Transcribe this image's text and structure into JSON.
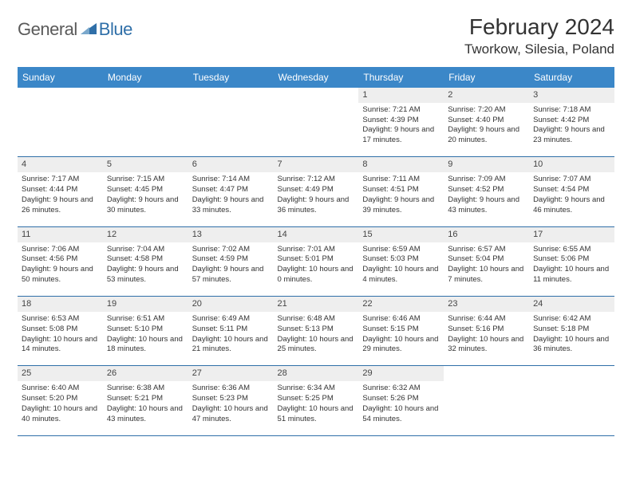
{
  "logo": {
    "general": "General",
    "blue": "Blue",
    "icon_color": "#2f6fa8"
  },
  "title": "February 2024",
  "location": "Tworkow, Silesia, Poland",
  "header_bg": "#3b87c8",
  "header_fg": "#ffffff",
  "daynum_bg": "#eeeeee",
  "border_color": "#2f6fa8",
  "text_color": "#333333",
  "day_names": [
    "Sunday",
    "Monday",
    "Tuesday",
    "Wednesday",
    "Thursday",
    "Friday",
    "Saturday"
  ],
  "weeks": [
    [
      null,
      null,
      null,
      null,
      {
        "n": "1",
        "sr": "Sunrise: 7:21 AM",
        "ss": "Sunset: 4:39 PM",
        "dl": "Daylight: 9 hours and 17 minutes."
      },
      {
        "n": "2",
        "sr": "Sunrise: 7:20 AM",
        "ss": "Sunset: 4:40 PM",
        "dl": "Daylight: 9 hours and 20 minutes."
      },
      {
        "n": "3",
        "sr": "Sunrise: 7:18 AM",
        "ss": "Sunset: 4:42 PM",
        "dl": "Daylight: 9 hours and 23 minutes."
      }
    ],
    [
      {
        "n": "4",
        "sr": "Sunrise: 7:17 AM",
        "ss": "Sunset: 4:44 PM",
        "dl": "Daylight: 9 hours and 26 minutes."
      },
      {
        "n": "5",
        "sr": "Sunrise: 7:15 AM",
        "ss": "Sunset: 4:45 PM",
        "dl": "Daylight: 9 hours and 30 minutes."
      },
      {
        "n": "6",
        "sr": "Sunrise: 7:14 AM",
        "ss": "Sunset: 4:47 PM",
        "dl": "Daylight: 9 hours and 33 minutes."
      },
      {
        "n": "7",
        "sr": "Sunrise: 7:12 AM",
        "ss": "Sunset: 4:49 PM",
        "dl": "Daylight: 9 hours and 36 minutes."
      },
      {
        "n": "8",
        "sr": "Sunrise: 7:11 AM",
        "ss": "Sunset: 4:51 PM",
        "dl": "Daylight: 9 hours and 39 minutes."
      },
      {
        "n": "9",
        "sr": "Sunrise: 7:09 AM",
        "ss": "Sunset: 4:52 PM",
        "dl": "Daylight: 9 hours and 43 minutes."
      },
      {
        "n": "10",
        "sr": "Sunrise: 7:07 AM",
        "ss": "Sunset: 4:54 PM",
        "dl": "Daylight: 9 hours and 46 minutes."
      }
    ],
    [
      {
        "n": "11",
        "sr": "Sunrise: 7:06 AM",
        "ss": "Sunset: 4:56 PM",
        "dl": "Daylight: 9 hours and 50 minutes."
      },
      {
        "n": "12",
        "sr": "Sunrise: 7:04 AM",
        "ss": "Sunset: 4:58 PM",
        "dl": "Daylight: 9 hours and 53 minutes."
      },
      {
        "n": "13",
        "sr": "Sunrise: 7:02 AM",
        "ss": "Sunset: 4:59 PM",
        "dl": "Daylight: 9 hours and 57 minutes."
      },
      {
        "n": "14",
        "sr": "Sunrise: 7:01 AM",
        "ss": "Sunset: 5:01 PM",
        "dl": "Daylight: 10 hours and 0 minutes."
      },
      {
        "n": "15",
        "sr": "Sunrise: 6:59 AM",
        "ss": "Sunset: 5:03 PM",
        "dl": "Daylight: 10 hours and 4 minutes."
      },
      {
        "n": "16",
        "sr": "Sunrise: 6:57 AM",
        "ss": "Sunset: 5:04 PM",
        "dl": "Daylight: 10 hours and 7 minutes."
      },
      {
        "n": "17",
        "sr": "Sunrise: 6:55 AM",
        "ss": "Sunset: 5:06 PM",
        "dl": "Daylight: 10 hours and 11 minutes."
      }
    ],
    [
      {
        "n": "18",
        "sr": "Sunrise: 6:53 AM",
        "ss": "Sunset: 5:08 PM",
        "dl": "Daylight: 10 hours and 14 minutes."
      },
      {
        "n": "19",
        "sr": "Sunrise: 6:51 AM",
        "ss": "Sunset: 5:10 PM",
        "dl": "Daylight: 10 hours and 18 minutes."
      },
      {
        "n": "20",
        "sr": "Sunrise: 6:49 AM",
        "ss": "Sunset: 5:11 PM",
        "dl": "Daylight: 10 hours and 21 minutes."
      },
      {
        "n": "21",
        "sr": "Sunrise: 6:48 AM",
        "ss": "Sunset: 5:13 PM",
        "dl": "Daylight: 10 hours and 25 minutes."
      },
      {
        "n": "22",
        "sr": "Sunrise: 6:46 AM",
        "ss": "Sunset: 5:15 PM",
        "dl": "Daylight: 10 hours and 29 minutes."
      },
      {
        "n": "23",
        "sr": "Sunrise: 6:44 AM",
        "ss": "Sunset: 5:16 PM",
        "dl": "Daylight: 10 hours and 32 minutes."
      },
      {
        "n": "24",
        "sr": "Sunrise: 6:42 AM",
        "ss": "Sunset: 5:18 PM",
        "dl": "Daylight: 10 hours and 36 minutes."
      }
    ],
    [
      {
        "n": "25",
        "sr": "Sunrise: 6:40 AM",
        "ss": "Sunset: 5:20 PM",
        "dl": "Daylight: 10 hours and 40 minutes."
      },
      {
        "n": "26",
        "sr": "Sunrise: 6:38 AM",
        "ss": "Sunset: 5:21 PM",
        "dl": "Daylight: 10 hours and 43 minutes."
      },
      {
        "n": "27",
        "sr": "Sunrise: 6:36 AM",
        "ss": "Sunset: 5:23 PM",
        "dl": "Daylight: 10 hours and 47 minutes."
      },
      {
        "n": "28",
        "sr": "Sunrise: 6:34 AM",
        "ss": "Sunset: 5:25 PM",
        "dl": "Daylight: 10 hours and 51 minutes."
      },
      {
        "n": "29",
        "sr": "Sunrise: 6:32 AM",
        "ss": "Sunset: 5:26 PM",
        "dl": "Daylight: 10 hours and 54 minutes."
      },
      null,
      null
    ]
  ]
}
